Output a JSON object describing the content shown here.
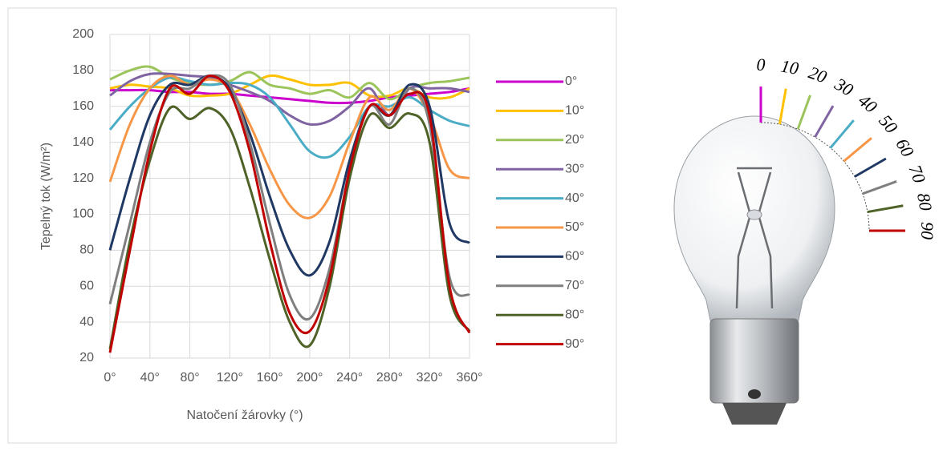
{
  "chart_data": {
    "type": "line",
    "xlabel": "Natočení žárovky (°)",
    "ylabel": "Tepelný tok (W/m²)",
    "x": [
      0,
      20,
      40,
      60,
      80,
      100,
      120,
      140,
      160,
      180,
      200,
      220,
      240,
      260,
      280,
      300,
      320,
      340,
      360
    ],
    "xlim": [
      0,
      360
    ],
    "ylim": [
      20,
      200
    ],
    "xticks": [
      {
        "value": 0,
        "label": "0°"
      },
      {
        "value": 40,
        "label": "40°"
      },
      {
        "value": 80,
        "label": "80°"
      },
      {
        "value": 120,
        "label": "120°"
      },
      {
        "value": 160,
        "label": "160°"
      },
      {
        "value": 200,
        "label": "200°"
      },
      {
        "value": 240,
        "label": "240°"
      },
      {
        "value": 280,
        "label": "280°"
      },
      {
        "value": 320,
        "label": "320°"
      },
      {
        "value": 360,
        "label": "360°"
      }
    ],
    "yticks": [
      20,
      40,
      60,
      80,
      100,
      120,
      140,
      160,
      180,
      200
    ],
    "grid": true,
    "legend": "right",
    "series": [
      {
        "name": "0°",
        "color": "#cc00cc",
        "values": [
          169,
          169,
          169,
          168,
          168,
          167,
          167,
          166,
          165,
          164,
          163,
          162,
          162,
          163,
          165,
          166,
          167,
          168,
          170
        ]
      },
      {
        "name": "10°",
        "color": "#ffc000",
        "values": [
          170,
          172,
          171,
          170,
          166,
          166,
          167,
          172,
          177,
          175,
          172,
          172,
          173,
          166,
          166,
          170,
          165,
          165,
          170
        ]
      },
      {
        "name": "20°",
        "color": "#9bc45a",
        "values": [
          175,
          180,
          182,
          176,
          173,
          172,
          174,
          179,
          172,
          170,
          167,
          169,
          165,
          173,
          164,
          170,
          173,
          174,
          176
        ]
      },
      {
        "name": "30°",
        "color": "#8064a2",
        "values": [
          166,
          174,
          178,
          178,
          177,
          176,
          172,
          168,
          163,
          155,
          150,
          152,
          160,
          170,
          155,
          170,
          170,
          170,
          168
        ]
      },
      {
        "name": "40°",
        "color": "#4bacc6",
        "values": [
          147,
          160,
          170,
          176,
          174,
          172,
          173,
          172,
          165,
          150,
          135,
          132,
          143,
          160,
          160,
          165,
          158,
          152,
          149
        ]
      },
      {
        "name": "50°",
        "color": "#f79646",
        "values": [
          118,
          150,
          170,
          177,
          172,
          175,
          170,
          150,
          125,
          105,
          98,
          110,
          140,
          165,
          158,
          170,
          155,
          125,
          120
        ]
      },
      {
        "name": "60°",
        "color": "#1f3864",
        "values": [
          80,
          120,
          155,
          172,
          172,
          177,
          170,
          145,
          110,
          80,
          66,
          85,
          130,
          160,
          155,
          172,
          160,
          95,
          84
        ]
      },
      {
        "name": "70°",
        "color": "#7f7f7f",
        "values": [
          50,
          95,
          140,
          168,
          170,
          177,
          172,
          140,
          95,
          55,
          42,
          70,
          125,
          160,
          150,
          170,
          150,
          65,
          55
        ]
      },
      {
        "name": "80°",
        "color": "#4f6228",
        "values": [
          25,
          85,
          130,
          159,
          153,
          159,
          148,
          115,
          75,
          40,
          27,
          60,
          120,
          155,
          148,
          156,
          140,
          55,
          35
        ]
      },
      {
        "name": "90°",
        "color": "#c00000",
        "values": [
          23,
          80,
          135,
          170,
          167,
          177,
          168,
          135,
          85,
          45,
          35,
          65,
          125,
          160,
          155,
          167,
          155,
          60,
          34
        ]
      }
    ]
  },
  "diagram": {
    "angle_labels": [
      "0",
      "10",
      "20",
      "30",
      "40",
      "50",
      "60",
      "70",
      "80",
      "90"
    ]
  }
}
